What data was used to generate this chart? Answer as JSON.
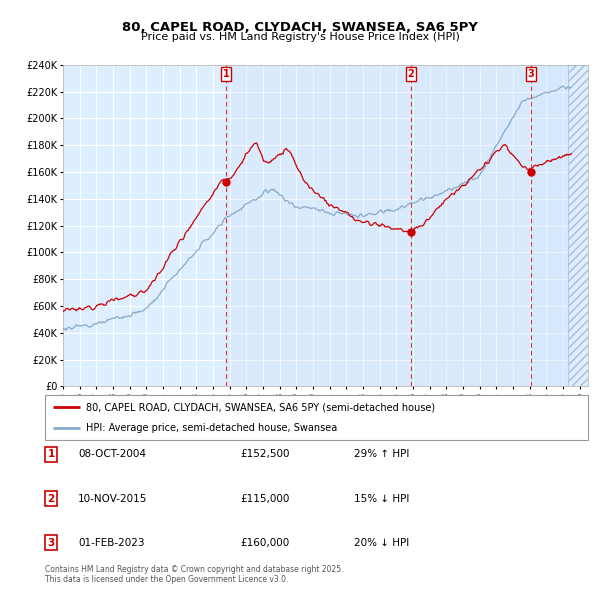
{
  "title": "80, CAPEL ROAD, CLYDACH, SWANSEA, SA6 5PY",
  "subtitle": "Price paid vs. HM Land Registry's House Price Index (HPI)",
  "ylim": [
    0,
    240000
  ],
  "yticks": [
    0,
    20000,
    40000,
    60000,
    80000,
    100000,
    120000,
    140000,
    160000,
    180000,
    200000,
    220000,
    240000
  ],
  "ytick_labels": [
    "£0",
    "£20K",
    "£40K",
    "£60K",
    "£80K",
    "£100K",
    "£120K",
    "£140K",
    "£160K",
    "£180K",
    "£200K",
    "£220K",
    "£240K"
  ],
  "background_color": "#ffffff",
  "plot_bg_color": "#ddeeff",
  "grid_color": "#ffffff",
  "transaction1_date": "08-OCT-2004",
  "transaction1_price": 152500,
  "transaction1_hpi": "29% ↑ HPI",
  "transaction1_x": 2004.77,
  "transaction2_date": "10-NOV-2015",
  "transaction2_price": 115000,
  "transaction2_hpi": "15% ↓ HPI",
  "transaction2_x": 2015.86,
  "transaction3_date": "01-FEB-2023",
  "transaction3_price": 160000,
  "transaction3_hpi": "20% ↓ HPI",
  "transaction3_x": 2023.08,
  "red_line_color": "#cc0000",
  "blue_line_color": "#88aacc",
  "vline_color": "#dd3333",
  "legend_label_red": "80, CAPEL ROAD, CLYDACH, SWANSEA, SA6 5PY (semi-detached house)",
  "legend_label_blue": "HPI: Average price, semi-detached house, Swansea",
  "footer": "Contains HM Land Registry data © Crown copyright and database right 2025.\nThis data is licensed under the Open Government Licence v3.0.",
  "xmin": 1995.0,
  "xmax": 2026.5,
  "hatch_start": 2025.3
}
